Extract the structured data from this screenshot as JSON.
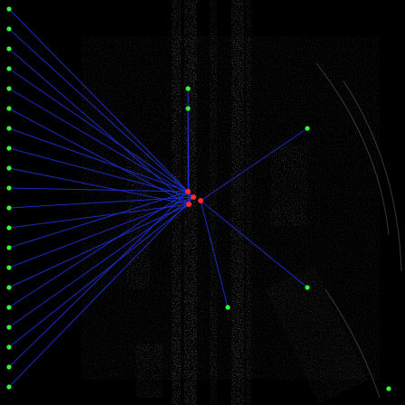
{
  "image": {
    "kind": "grayscale sonar / ultrasound-like frame with overlaid feature correspondences",
    "background_color": "#000000",
    "texture_color": "#d8d8d8"
  },
  "overlay": {
    "line_color": "#1f2fd6",
    "origin_marker_color": "#ff2a2a",
    "endpoint_marker_color": "#33ff33",
    "origin_marker_count": 4,
    "endpoint_marker_count": 26
  }
}
